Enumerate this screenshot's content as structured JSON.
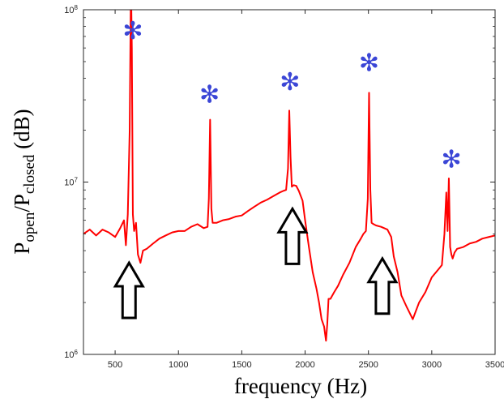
{
  "chart_data": {
    "type": "line",
    "xlabel": "frequency (Hz)",
    "ylabel": {
      "base": "P",
      "sub1": "open",
      "slash": "/P",
      "sub2": "closed",
      "unit": " (dB)"
    },
    "xlim": [
      250,
      3500
    ],
    "ylim": [
      1000000,
      100000000
    ],
    "y_scale": "log",
    "grid": false,
    "x_ticks": [
      500,
      1000,
      1500,
      2000,
      2500,
      3000,
      3500
    ],
    "x_tick_labels": [
      "500",
      "1000",
      "1500",
      "2000",
      "2500",
      "3000",
      "3500"
    ],
    "y_ticks": [
      {
        "value": 1000000,
        "base": "10",
        "exp": "6"
      },
      {
        "value": 10000000,
        "base": "10",
        "exp": "7"
      },
      {
        "value": 100000000,
        "base": "10",
        "exp": "8"
      }
    ],
    "series": [
      {
        "color": "#ff0000",
        "x": [
          250,
          300,
          350,
          400,
          450,
          500,
          540,
          570,
          585,
          600,
          615,
          625,
          632,
          640,
          650,
          665,
          680,
          700,
          720,
          750,
          800,
          850,
          900,
          950,
          1000,
          1050,
          1100,
          1150,
          1200,
          1230,
          1240,
          1250,
          1260,
          1270,
          1300,
          1350,
          1400,
          1450,
          1500,
          1550,
          1600,
          1650,
          1700,
          1750,
          1800,
          1830,
          1850,
          1865,
          1875,
          1885,
          1895,
          1910,
          1930,
          1950,
          1980,
          2000,
          2030,
          2060,
          2090,
          2110,
          2130,
          2150,
          2165,
          2175,
          2185,
          2200,
          2230,
          2260,
          2300,
          2350,
          2400,
          2440,
          2460,
          2480,
          2495,
          2505,
          2515,
          2525,
          2540,
          2560,
          2600,
          2650,
          2680,
          2700,
          2730,
          2760,
          2800,
          2850,
          2900,
          2950,
          3000,
          3050,
          3080,
          3100,
          3115,
          3125,
          3135,
          3145,
          3155,
          3165,
          3180,
          3200,
          3250,
          3300,
          3350,
          3400,
          3450,
          3500
        ],
        "y": [
          5000000,
          5300000,
          4900000,
          5300000,
          5100000,
          4800000,
          5400000,
          6000000,
          4300000,
          6500000,
          20000000,
          150000000,
          60000000,
          6500000,
          5200000,
          5800000,
          3800000,
          3400000,
          4000000,
          4100000,
          4400000,
          4700000,
          4900000,
          5100000,
          5200000,
          5200000,
          5500000,
          5700000,
          5400000,
          5500000,
          8000000,
          23000000,
          7000000,
          5800000,
          5800000,
          6000000,
          6100000,
          6300000,
          6400000,
          6800000,
          7200000,
          7600000,
          7900000,
          8300000,
          8700000,
          8900000,
          9000000,
          12000000,
          26000000,
          14000000,
          9400000,
          9600000,
          9500000,
          8900000,
          7800000,
          6000000,
          4200000,
          3000000,
          2400000,
          2000000,
          1600000,
          1450000,
          1200000,
          1500000,
          2100000,
          2100000,
          2300000,
          2500000,
          2900000,
          3400000,
          4200000,
          4700000,
          5000000,
          5200000,
          8000000,
          33000000,
          9000000,
          5800000,
          5700000,
          5600000,
          5500000,
          5300000,
          4800000,
          3700000,
          3000000,
          2200000,
          1900000,
          1600000,
          2000000,
          2300000,
          2800000,
          3100000,
          3300000,
          5000000,
          8700000,
          5200000,
          10500000,
          4200000,
          3800000,
          3600000,
          3900000,
          4100000,
          4200000,
          4400000,
          4500000,
          4700000,
          4800000,
          4900000
        ]
      }
    ],
    "annotations": {
      "asterisk_glyph": "✻",
      "asterisk_color": "#3b46d6",
      "asterisks": [
        {
          "x": 640,
          "y": 75000000
        },
        {
          "x": 1245,
          "y": 32000000
        },
        {
          "x": 1880,
          "y": 38000000
        },
        {
          "x": 2505,
          "y": 49000000
        },
        {
          "x": 3155,
          "y": 13500000
        }
      ],
      "arrows": [
        {
          "x": 610,
          "y": 3400000,
          "direction": "up"
        },
        {
          "x": 1900,
          "y": 7000000,
          "direction": "up"
        },
        {
          "x": 2610,
          "y": 3600000,
          "direction": "up"
        }
      ]
    }
  }
}
